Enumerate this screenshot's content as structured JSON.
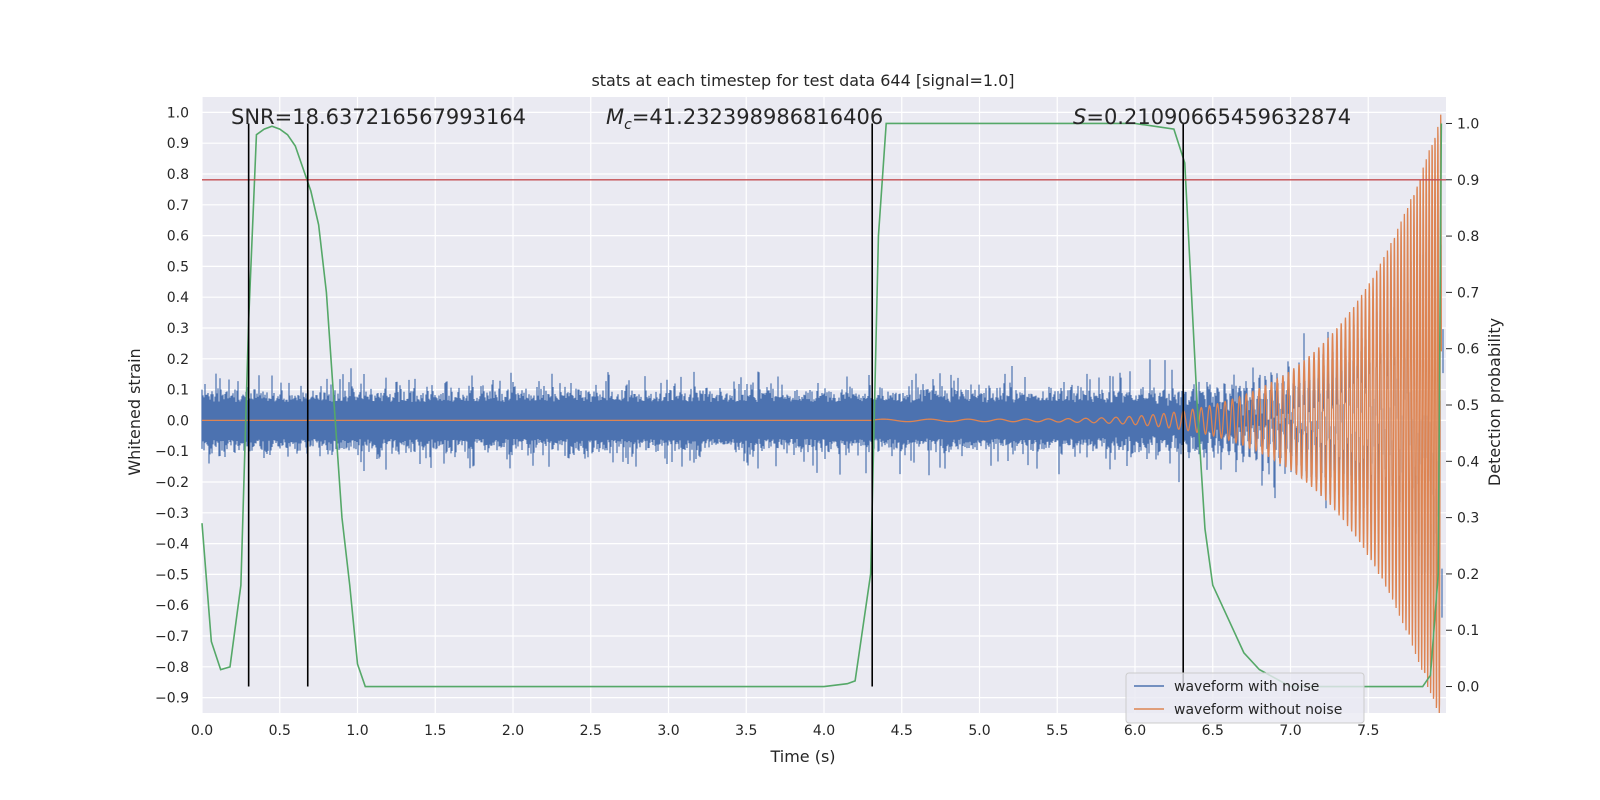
{
  "chart_data": {
    "type": "line",
    "title": "stats at each timestep for test data 644 [signal=1.0]",
    "xlabel": "Time (s)",
    "ylabel": "Whitened strain",
    "y2label": "Detection probability",
    "xlim": [
      0.0,
      8.0
    ],
    "ylim": [
      -0.95,
      1.05
    ],
    "y2lim": [
      -0.047,
      1.047
    ],
    "x_ticks": [
      "0.0",
      "0.5",
      "1.0",
      "1.5",
      "2.0",
      "2.5",
      "3.0",
      "3.5",
      "4.0",
      "4.5",
      "5.0",
      "5.5",
      "6.0",
      "6.5",
      "7.0",
      "7.5"
    ],
    "y_ticks": [
      "1.0",
      "0.9",
      "0.8",
      "0.7",
      "0.6",
      "0.5",
      "0.4",
      "0.3",
      "0.2",
      "0.1",
      "0.0",
      "−0.1",
      "−0.2",
      "−0.3",
      "−0.4",
      "−0.5",
      "−0.6",
      "−0.7",
      "−0.8",
      "−0.9"
    ],
    "y2_ticks": [
      "1.0",
      "0.9",
      "0.8",
      "0.7",
      "0.6",
      "0.5",
      "0.4",
      "0.3",
      "0.2",
      "0.1",
      "0.0"
    ],
    "grid": true,
    "legend_placement": "lower-right",
    "annotations": {
      "snr": "SNR=18.637216567993164",
      "mc_symbol": "M",
      "mc_sub": "c",
      "mc_value": "=41.232398986816406",
      "s_symbol": "S",
      "s_value": "=0.21090665459632874"
    },
    "series": [
      {
        "name": "waveform with noise",
        "color": "#4c72b0",
        "axis": "left",
        "description_values": {
          "band_low": -0.12,
          "band_high": 0.12,
          "spike_max": 0.23,
          "spike_min": -0.23
        }
      },
      {
        "name": "waveform without noise",
        "color": "#dd8452",
        "axis": "left",
        "chirp": {
          "start_x": 4.3,
          "end_x": 7.97,
          "start_amp": 0.004,
          "end_amp": 1.0
        }
      },
      {
        "name": "Detection probability",
        "color": "#55a868",
        "axis": "right",
        "x": [
          0.0,
          0.06,
          0.12,
          0.18,
          0.25,
          0.3,
          0.35,
          0.4,
          0.45,
          0.5,
          0.55,
          0.6,
          0.65,
          0.7,
          0.75,
          0.8,
          0.85,
          0.9,
          0.95,
          1.0,
          1.05,
          1.1,
          1.5,
          2.0,
          3.0,
          4.0,
          4.15,
          4.2,
          4.3,
          4.35,
          4.4,
          5.0,
          6.0,
          6.25,
          6.32,
          6.4,
          6.45,
          6.5,
          6.6,
          6.7,
          6.8,
          7.0,
          7.5,
          7.85,
          7.9,
          7.95,
          7.97
        ],
        "values": [
          0.29,
          0.08,
          0.03,
          0.035,
          0.18,
          0.65,
          0.98,
          0.99,
          0.995,
          0.99,
          0.98,
          0.96,
          0.92,
          0.88,
          0.82,
          0.7,
          0.5,
          0.3,
          0.18,
          0.04,
          0.0,
          0.0,
          0.0,
          0.0,
          0.0,
          0.0,
          0.005,
          0.01,
          0.2,
          0.8,
          1.0,
          1.0,
          1.0,
          0.99,
          0.93,
          0.5,
          0.28,
          0.18,
          0.12,
          0.06,
          0.03,
          0.0,
          0.0,
          0.0,
          0.02,
          0.2,
          1.0
        ]
      }
    ],
    "threshold_line": {
      "color": "#c44e52",
      "y2": 0.9
    },
    "vertical_lines": {
      "color": "#000000",
      "x": [
        0.3,
        0.68,
        4.31,
        6.31
      ]
    }
  }
}
